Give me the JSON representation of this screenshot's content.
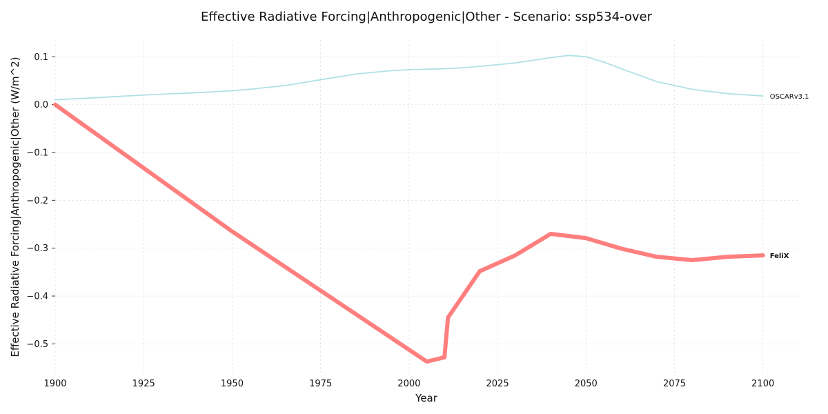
{
  "chart_data": {
    "type": "line",
    "title": "Effective Radiative Forcing|Anthropogenic|Other - Scenario: ssp534-over",
    "xlabel": "Year",
    "ylabel": "Effective Radiative Forcing|Anthropogenic|Other (W/m^2)",
    "xlim": [
      1900,
      2110
    ],
    "ylim": [
      -0.56,
      0.135
    ],
    "x_ticks": [
      1900,
      1925,
      1950,
      1975,
      2000,
      2025,
      2050,
      2075,
      2100
    ],
    "y_ticks": [
      0.1,
      0.0,
      -0.1,
      -0.2,
      -0.3,
      -0.4,
      -0.5
    ],
    "y_tick_labels": [
      "0.1",
      "0.0",
      "−0.1",
      "−0.2",
      "−0.3",
      "−0.4",
      "−0.5"
    ],
    "grid": true,
    "legend": "none (series labeled at line ends)",
    "series": [
      {
        "name": "OSCARv3.1",
        "color": "#b0e0e6",
        "label_bold": false,
        "emphasis": "thin",
        "x": [
          1900,
          1910,
          1925,
          1940,
          1950,
          1955,
          1965,
          1975,
          1985,
          1995,
          2000,
          2010,
          2015,
          2020,
          2030,
          2040,
          2045,
          2050,
          2055,
          2060,
          2070,
          2080,
          2090,
          2100
        ],
        "y": [
          0.01,
          0.014,
          0.02,
          0.025,
          0.029,
          0.032,
          0.04,
          0.052,
          0.064,
          0.071,
          0.073,
          0.075,
          0.077,
          0.08,
          0.087,
          0.098,
          0.103,
          0.1,
          0.089,
          0.075,
          0.048,
          0.032,
          0.023,
          0.018
        ]
      },
      {
        "name": "FeliX",
        "color": "#ff7f7f",
        "label_bold": true,
        "emphasis": "thick",
        "x": [
          1900,
          1950,
          2005,
          2010,
          2011,
          2020,
          2030,
          2040,
          2050,
          2060,
          2070,
          2080,
          2090,
          2100
        ],
        "y": [
          0.0,
          -0.265,
          -0.537,
          -0.528,
          -0.445,
          -0.348,
          -0.315,
          -0.27,
          -0.279,
          -0.301,
          -0.318,
          -0.325,
          -0.318,
          -0.315
        ]
      }
    ]
  }
}
